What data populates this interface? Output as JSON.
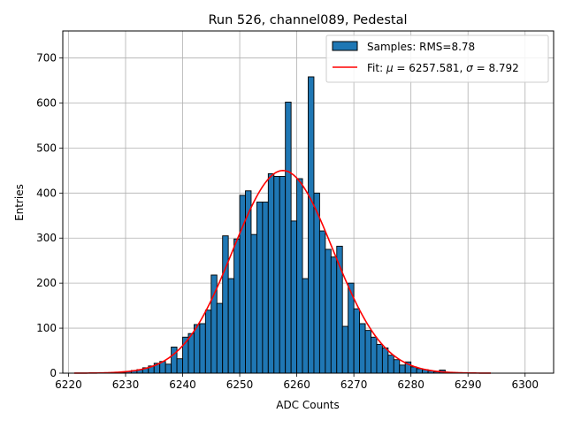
{
  "chart_data": {
    "type": "bar",
    "title": "Run 526, channel089, Pedestal",
    "xlabel": "ADC Counts",
    "ylabel": "Entries",
    "xlim": [
      6219,
      6305
    ],
    "ylim": [
      0,
      760
    ],
    "xticks": [
      6220,
      6230,
      6240,
      6250,
      6260,
      6270,
      6280,
      6290,
      6300
    ],
    "yticks": [
      0,
      100,
      200,
      300,
      400,
      500,
      600,
      700
    ],
    "grid": true,
    "legend_position": "upper right",
    "bin_width": 1,
    "series": [
      {
        "name": "Samples: RMS=8.78",
        "kind": "histogram",
        "color": "#1f77b4",
        "edgecolor": "#000000",
        "bin_starts": [
          6229,
          6230,
          6231,
          6232,
          6233,
          6234,
          6235,
          6236,
          6237,
          6238,
          6239,
          6240,
          6241,
          6242,
          6243,
          6244,
          6245,
          6246,
          6247,
          6248,
          6249,
          6250,
          6251,
          6252,
          6253,
          6254,
          6255,
          6256,
          6257,
          6258,
          6259,
          6260,
          6261,
          6262,
          6263,
          6264,
          6265,
          6266,
          6267,
          6268,
          6269,
          6270,
          6271,
          6272,
          6273,
          6274,
          6275,
          6276,
          6277,
          6278,
          6279,
          6280,
          6281,
          6282,
          6283,
          6284,
          6285,
          6286
        ],
        "counts": [
          1,
          4,
          6,
          8,
          12,
          16,
          22,
          26,
          20,
          58,
          32,
          80,
          88,
          108,
          110,
          140,
          218,
          155,
          305,
          210,
          298,
          395,
          405,
          308,
          380,
          380,
          443,
          437,
          437,
          602,
          338,
          432,
          210,
          658,
          400,
          316,
          275,
          258,
          282,
          104,
          200,
          143,
          110,
          95,
          80,
          64,
          56,
          40,
          30,
          18,
          25,
          14,
          10,
          8,
          5,
          3,
          7,
          2
        ]
      },
      {
        "name": "Fit: μ = 6257.581, σ = 8.792",
        "kind": "gaussian",
        "color": "#ff0000",
        "mu": 6257.581,
        "sigma": 8.792,
        "amplitude": 450,
        "x_range": [
          6221,
          6294
        ]
      }
    ]
  },
  "legend": {
    "entries": [
      {
        "label_prefix": "Samples: RMS=8.78"
      },
      {
        "label_prefix": "Fit: ",
        "mu_symbol": "μ",
        "mu_text": " = 6257.581, ",
        "sigma_symbol": "σ",
        "sigma_text": " = 8.792"
      }
    ]
  }
}
